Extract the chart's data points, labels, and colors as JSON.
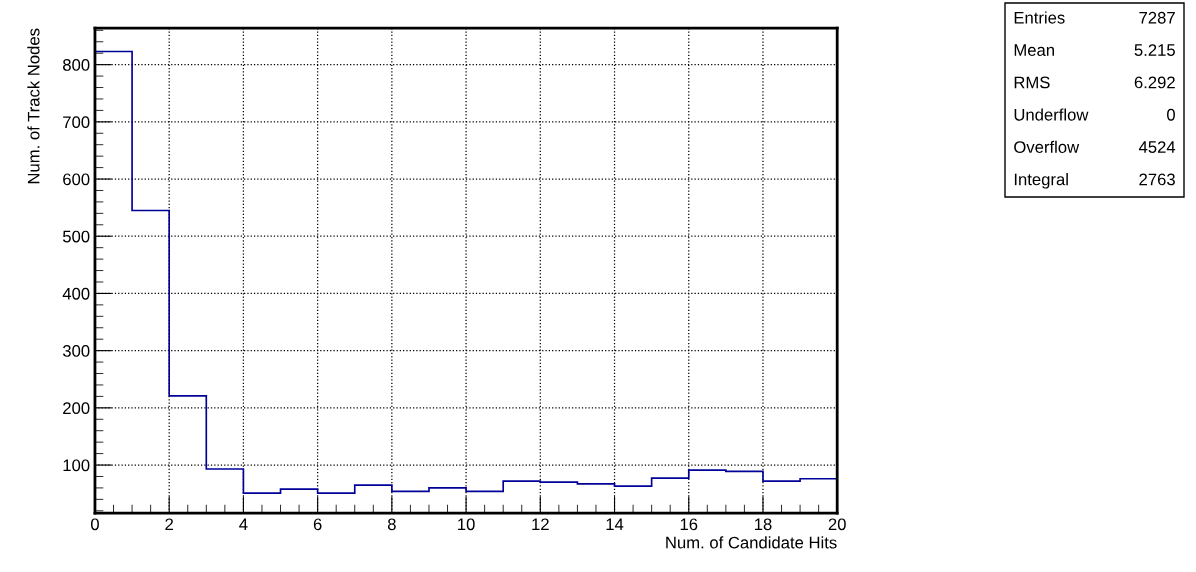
{
  "chart_data": {
    "type": "histogram",
    "xlabel": "Num. of Candidate Hits",
    "ylabel": "Num. of Track Nodes",
    "bins": [
      0,
      1,
      2,
      3,
      4,
      5,
      6,
      7,
      8,
      9,
      10,
      11,
      12,
      13,
      14,
      15,
      16,
      17,
      18,
      19,
      20
    ],
    "values": [
      823,
      545,
      221,
      93,
      51,
      58,
      51,
      65,
      54,
      60,
      54,
      72,
      70,
      67,
      63,
      77,
      91,
      89,
      72,
      76
    ],
    "color": "#000099",
    "xlim": [
      0,
      20
    ],
    "xticks": [
      0,
      2,
      4,
      6,
      8,
      10,
      12,
      14,
      16,
      18,
      20
    ],
    "ylim": [
      16,
      864
    ],
    "yticks": [
      100,
      200,
      300,
      400,
      500,
      600,
      700,
      800
    ],
    "grid": true,
    "annotations": [
      "Entries",
      "7287",
      "Mean",
      "5.215",
      "RMS",
      "6.292",
      "Underflow",
      "0",
      "Overflow",
      "4524",
      "Integral",
      "2763"
    ]
  }
}
